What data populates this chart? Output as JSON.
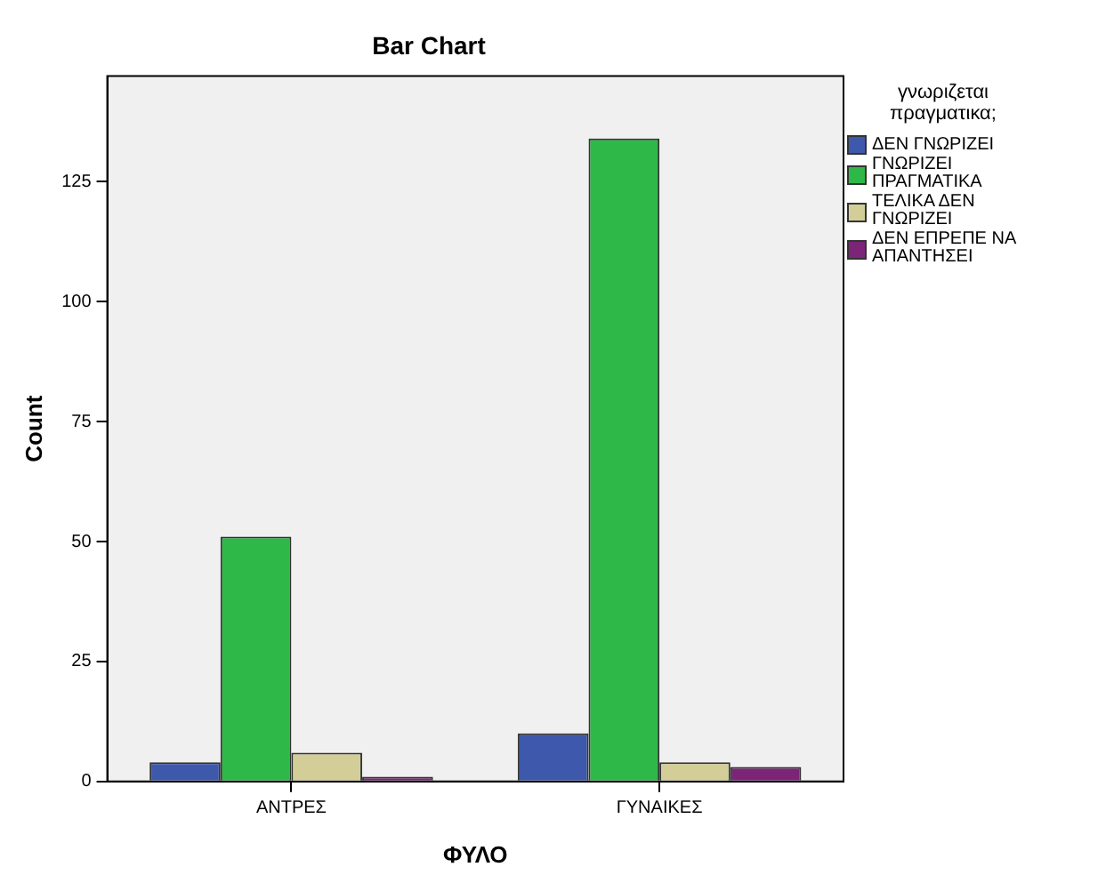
{
  "chart_data": {
    "type": "bar",
    "title": "Bar Chart",
    "xlabel": "ΦΥΛΟ",
    "ylabel": "Count",
    "legend_title": "γνωριζεται πραγματικα;",
    "legend": "right",
    "grid": false,
    "categories": [
      "ΑΝΤΡΕΣ",
      "ΓΥΝΑΙΚΕΣ"
    ],
    "series": [
      {
        "name": "ΔΕΝ ΓΝΩΡΙΖΕΙ",
        "color": "#3e58ac",
        "values": [
          4,
          10
        ]
      },
      {
        "name": "ΓΝΩΡΙΖΕΙ ΠΡΑΓΜΑΤΙΚΑ",
        "color": "#2eb848",
        "values": [
          51,
          134
        ]
      },
      {
        "name": "ΤΕΛΙΚΑ ΔΕΝ ΓΝΩΡΙΖΕΙ",
        "color": "#d3ce97",
        "values": [
          6,
          4
        ]
      },
      {
        "name": "ΔΕΝ ΕΠΡΕΠΕ ΝΑ ΑΠΑΝΤΗΣΕΙ",
        "color": "#7b2478",
        "values": [
          1,
          3
        ]
      }
    ],
    "ylim": [
      0,
      147
    ],
    "yticks": [
      0,
      25,
      50,
      75,
      100,
      125
    ]
  }
}
